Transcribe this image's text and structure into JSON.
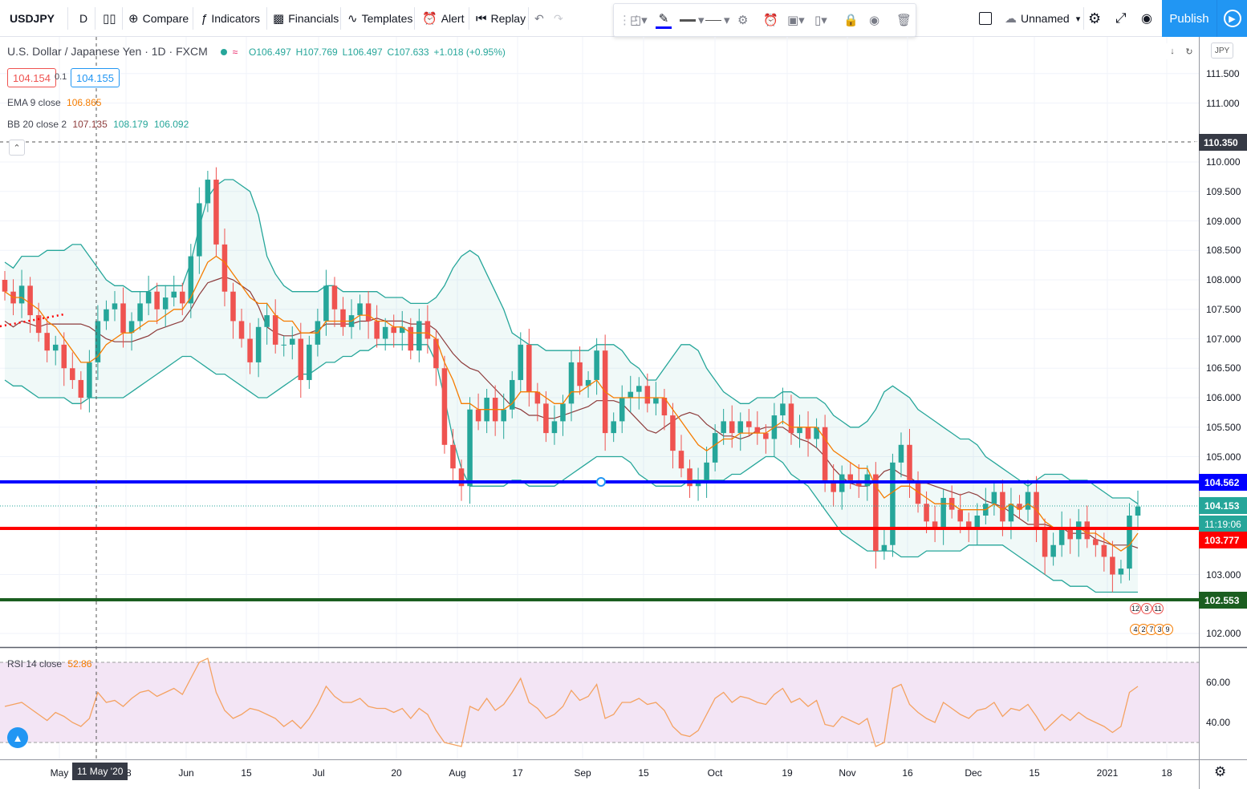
{
  "toolbar": {
    "symbol": "USDJPY",
    "interval": "D",
    "compare": "Compare",
    "indicators": "Indicators",
    "financials": "Financials",
    "templates": "Templates",
    "alert": "Alert",
    "replay": "Replay",
    "layout_name": "Unnamed",
    "publish": "Publish"
  },
  "legend": {
    "title": "U.S. Dollar / Japanese Yen · 1D · FXCM",
    "open": "O106.497",
    "high": "H107.769",
    "low": "L106.497",
    "close": "C107.633",
    "change": "+1.018 (+0.95%)",
    "sell_price": "104.154",
    "spread": "0.1",
    "buy_price": "104.155",
    "ema_label": "EMA 9 close",
    "ema_value": "106.865",
    "bb_label": "BB 20 close 2",
    "bb_basis": "107.135",
    "bb_upper": "108.179",
    "bb_lower": "106.092",
    "rsi_label": "RSI 14 close",
    "rsi_value": "52.86"
  },
  "price_scale": {
    "currency": "JPY",
    "ticks": [
      "111.500",
      "111.000",
      "110.000",
      "109.500",
      "109.000",
      "108.500",
      "108.000",
      "107.500",
      "107.000",
      "106.500",
      "106.000",
      "105.500",
      "105.000",
      "103.000",
      "102.000"
    ],
    "crosshair_price": "110.350",
    "blue_line_price": "104.562",
    "last_price": "104.153",
    "countdown": "11:19:06",
    "red_line_price": "103.777",
    "green_line_price": "102.553",
    "rsi_ticks": [
      "60.00",
      "40.00"
    ]
  },
  "time_scale": {
    "ticks": [
      "May",
      "18",
      "Jun",
      "15",
      "Jul",
      "20",
      "Aug",
      "17",
      "Sep",
      "15",
      "Oct",
      "19",
      "Nov",
      "16",
      "Dec",
      "15",
      "2021",
      "18"
    ],
    "crosshair_date": "11 May '20"
  },
  "events": {
    "row1": [
      "12",
      "3",
      "11"
    ],
    "row2": [
      "4",
      "2",
      "7",
      "3",
      "9"
    ]
  },
  "colors": {
    "up": "#26a69a",
    "down": "#ef5350",
    "ema": "#f57c00",
    "bb_band": "#26a69a",
    "bb_basis": "#8d3b3b",
    "blue_line": "#0000ff",
    "red_line": "#ff0000",
    "green_line": "#1b5e20",
    "rsi": "#f4a261",
    "rsi_fill": "#f3e5f5",
    "accent": "#2196f3"
  },
  "chart_data": {
    "type": "candlestick",
    "symbol": "USDJPY",
    "timeframe": "1D",
    "price_range": [
      101.6,
      112.0
    ],
    "closes": [
      107.8,
      107.6,
      107.9,
      107.4,
      107.1,
      106.8,
      106.9,
      106.5,
      106.3,
      106.0,
      106.6,
      107.3,
      107.5,
      107.6,
      107.1,
      107.3,
      107.6,
      107.8,
      107.5,
      107.7,
      107.8,
      107.6,
      108.4,
      109.3,
      109.7,
      108.6,
      107.8,
      107.3,
      107.0,
      106.6,
      107.2,
      107.4,
      106.9,
      106.9,
      107.0,
      106.3,
      106.9,
      107.3,
      107.9,
      107.5,
      107.2,
      107.4,
      107.6,
      107.3,
      107.0,
      107.2,
      107.1,
      107.2,
      106.8,
      107.3,
      107.0,
      106.5,
      105.2,
      104.8,
      104.5,
      105.8,
      105.6,
      106.0,
      105.6,
      105.8,
      106.3,
      106.9,
      106.1,
      105.9,
      105.4,
      105.6,
      105.9,
      106.6,
      106.2,
      106.3,
      106.8,
      105.4,
      105.6,
      106.0,
      106.1,
      106.2,
      105.9,
      106.0,
      105.7,
      105.1,
      104.8,
      104.5,
      104.6,
      104.9,
      105.4,
      105.6,
      105.4,
      105.6,
      105.5,
      105.4,
      105.3,
      105.7,
      105.9,
      105.4,
      105.5,
      105.3,
      105.5,
      104.6,
      104.4,
      104.7,
      104.6,
      104.5,
      104.7,
      103.4,
      103.5,
      104.9,
      105.2,
      104.6,
      104.2,
      103.9,
      103.8,
      104.3,
      104.1,
      103.9,
      103.8,
      104.0,
      104.2,
      104.4,
      103.9,
      104.2,
      104.1,
      104.4,
      103.8,
      103.3,
      103.5,
      103.8,
      103.6,
      103.9,
      103.6,
      103.5,
      103.3,
      103.0,
      103.1,
      104.0,
      104.153
    ],
    "ema9": [
      107.8,
      107.7,
      107.7,
      107.6,
      107.5,
      107.3,
      107.2,
      107.0,
      106.8,
      106.6,
      106.6,
      106.7,
      106.9,
      107.0,
      107.1,
      107.1,
      107.2,
      107.3,
      107.3,
      107.4,
      107.5,
      107.5,
      107.7,
      108.0,
      108.3,
      108.4,
      108.3,
      108.1,
      107.9,
      107.7,
      107.6,
      107.6,
      107.4,
      107.3,
      107.3,
      107.1,
      107.1,
      107.1,
      107.3,
      107.3,
      107.3,
      107.3,
      107.4,
      107.4,
      107.3,
      107.3,
      107.2,
      107.2,
      107.1,
      107.1,
      107.1,
      107.0,
      106.6,
      106.3,
      105.9,
      105.9,
      105.8,
      105.8,
      105.8,
      105.8,
      105.9,
      106.1,
      106.1,
      106.1,
      106.0,
      105.9,
      105.9,
      106.1,
      106.1,
      106.2,
      106.3,
      106.1,
      106.0,
      106.0,
      106.0,
      106.0,
      106.0,
      106.0,
      106.0,
      105.8,
      105.6,
      105.4,
      105.2,
      105.1,
      105.2,
      105.3,
      105.3,
      105.4,
      105.4,
      105.4,
      105.4,
      105.5,
      105.6,
      105.5,
      105.5,
      105.5,
      105.5,
      105.3,
      105.1,
      105.0,
      104.9,
      104.8,
      104.8,
      104.5,
      104.3,
      104.4,
      104.5,
      104.5,
      104.4,
      104.3,
      104.2,
      104.2,
      104.2,
      104.1,
      104.1,
      104.1,
      104.1,
      104.2,
      104.1,
      104.2,
      104.1,
      104.2,
      104.1,
      103.9,
      103.8,
      103.8,
      103.8,
      103.8,
      103.7,
      103.7,
      103.6,
      103.5,
      103.4,
      103.5,
      103.7
    ],
    "bb_upper": [
      108.3,
      108.2,
      108.4,
      108.4,
      108.4,
      108.5,
      108.5,
      108.5,
      108.6,
      108.6,
      108.4,
      108.2,
      108.0,
      107.9,
      107.9,
      107.8,
      107.8,
      107.8,
      107.9,
      107.9,
      107.9,
      107.9,
      108.3,
      108.9,
      109.4,
      109.6,
      109.7,
      109.7,
      109.6,
      109.5,
      109.1,
      108.4,
      108.1,
      107.9,
      107.8,
      107.8,
      107.8,
      107.8,
      107.9,
      107.9,
      107.8,
      107.8,
      107.8,
      107.8,
      107.8,
      107.7,
      107.7,
      107.7,
      107.6,
      107.6,
      107.6,
      107.7,
      107.9,
      108.2,
      108.4,
      108.5,
      108.4,
      108.1,
      107.8,
      107.5,
      107.1,
      107.0,
      106.9,
      106.9,
      106.8,
      106.8,
      106.8,
      106.8,
      106.8,
      106.8,
      106.9,
      106.9,
      106.9,
      106.8,
      106.6,
      106.5,
      106.3,
      106.3,
      106.5,
      106.7,
      106.9,
      106.9,
      106.8,
      106.5,
      106.3,
      106.1,
      106.0,
      105.9,
      105.9,
      106.0,
      106.0,
      106.0,
      106.1,
      106.1,
      106.0,
      106.0,
      106.0,
      105.9,
      105.7,
      105.6,
      105.5,
      105.5,
      105.6,
      105.8,
      106.1,
      106.2,
      106.1,
      106.0,
      105.8,
      105.7,
      105.6,
      105.5,
      105.4,
      105.3,
      105.3,
      105.2,
      105.0,
      104.9,
      104.8,
      104.7,
      104.6,
      104.5,
      104.6,
      104.7,
      104.7,
      104.7,
      104.6,
      104.6,
      104.6,
      104.5,
      104.4,
      104.3,
      104.3,
      104.3,
      104.2
    ],
    "bb_lower": [
      106.3,
      106.2,
      106.2,
      106.1,
      106.0,
      106.0,
      106.0,
      106.0,
      105.9,
      105.9,
      106.0,
      106.0,
      106.0,
      106.0,
      106.0,
      106.1,
      106.2,
      106.3,
      106.4,
      106.5,
      106.6,
      106.7,
      106.7,
      106.6,
      106.5,
      106.4,
      106.4,
      106.3,
      106.2,
      106.1,
      106.0,
      106.0,
      106.1,
      106.2,
      106.3,
      106.4,
      106.4,
      106.5,
      106.6,
      106.6,
      106.7,
      106.7,
      106.8,
      106.8,
      106.9,
      106.9,
      106.9,
      106.9,
      106.9,
      106.9,
      106.9,
      106.6,
      106.0,
      105.3,
      104.8,
      104.5,
      104.5,
      104.5,
      104.5,
      104.5,
      104.6,
      104.6,
      104.5,
      104.5,
      104.5,
      104.5,
      104.6,
      104.7,
      104.8,
      104.9,
      105.0,
      105.0,
      105.0,
      105.0,
      104.9,
      104.7,
      104.6,
      104.5,
      104.5,
      104.5,
      104.5,
      104.6,
      104.6,
      104.6,
      104.6,
      104.6,
      104.7,
      104.7,
      104.8,
      104.9,
      105.0,
      105.0,
      104.9,
      104.7,
      104.6,
      104.5,
      104.3,
      104.1,
      103.9,
      103.7,
      103.6,
      103.5,
      103.4,
      103.4,
      103.4,
      103.4,
      103.3,
      103.3,
      103.3,
      103.4,
      103.4,
      103.4,
      103.4,
      103.4,
      103.5,
      103.5,
      103.5,
      103.5,
      103.5,
      103.4,
      103.3,
      103.2,
      103.1,
      103.0,
      102.9,
      102.9,
      102.8,
      102.8,
      102.8,
      102.7,
      102.7,
      102.7,
      102.7,
      102.7,
      102.7
    ],
    "rsi": [
      48,
      49,
      50,
      47,
      44,
      41,
      45,
      43,
      40,
      38,
      42,
      55,
      50,
      51,
      48,
      52,
      55,
      56,
      53,
      55,
      57,
      54,
      62,
      70,
      72,
      55,
      46,
      42,
      44,
      47,
      46,
      44,
      42,
      38,
      41,
      37,
      42,
      49,
      58,
      53,
      50,
      50,
      52,
      48,
      47,
      47,
      45,
      47,
      42,
      47,
      44,
      36,
      30,
      29,
      28,
      48,
      46,
      52,
      46,
      49,
      55,
      62,
      50,
      47,
      42,
      44,
      48,
      56,
      51,
      53,
      59,
      42,
      44,
      50,
      50,
      52,
      49,
      50,
      46,
      38,
      34,
      33,
      36,
      44,
      52,
      55,
      50,
      53,
      52,
      50,
      49,
      54,
      57,
      50,
      52,
      48,
      51,
      39,
      38,
      43,
      41,
      39,
      42,
      28,
      30,
      57,
      59,
      49,
      45,
      42,
      40,
      50,
      47,
      44,
      42,
      46,
      47,
      50,
      43,
      47,
      46,
      49,
      43,
      36,
      40,
      44,
      41,
      45,
      42,
      40,
      38,
      35,
      38,
      55,
      58
    ]
  }
}
